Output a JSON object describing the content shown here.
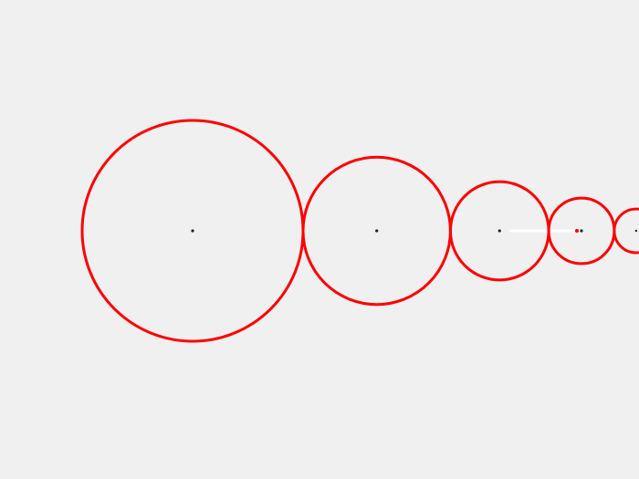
{
  "diagram": {
    "background_color": "#f0f0f0",
    "circle_color": "#ff0000",
    "center_dot_color": "#222222",
    "end_point_color": "#ff0000",
    "fade_color": "#ffffff",
    "circle_count": 60,
    "radius_ratio": 0.667,
    "description_shape": "chain of tangent circles shrinking geometrically toward a limit point"
  }
}
